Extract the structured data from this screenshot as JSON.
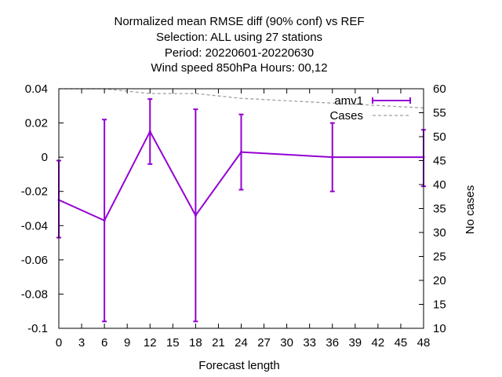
{
  "chart_data": {
    "type": "line",
    "title_lines": [
      "Normalized mean RMSE diff (90% conf) vs REF",
      "Selection: ALL using    27 stations",
      "Period: 20220601-20220630",
      "Wind speed 850hPa   Hours:  00,12"
    ],
    "xlabel": "Forecast length",
    "ylabel": "",
    "y2label": "No cases",
    "xlim": [
      0,
      48
    ],
    "ylim": [
      -0.1,
      0.04
    ],
    "y2lim": [
      10,
      60
    ],
    "x_ticks": [
      "0",
      "3",
      "6",
      "9",
      "12",
      "15",
      "18",
      "21",
      "24",
      "27",
      "30",
      "33",
      "36",
      "39",
      "42",
      "45",
      "48"
    ],
    "y_ticks": [
      "0.04",
      "0.02",
      "0",
      "-0.02",
      "-0.04",
      "-0.06",
      "-0.08",
      "-0.1"
    ],
    "y2_ticks": [
      "60",
      "55",
      "50",
      "45",
      "40",
      "35",
      "30",
      "25",
      "20",
      "15",
      "10"
    ],
    "legend_position": "top-right",
    "series": [
      {
        "name": "amv1",
        "axis": "left",
        "color": "#9400d3",
        "x": [
          0,
          6,
          12,
          18,
          24,
          36,
          48
        ],
        "y": [
          -0.025,
          -0.037,
          0.015,
          -0.034,
          0.003,
          0.0,
          0.0
        ],
        "y_low": [
          -0.047,
          -0.096,
          -0.004,
          -0.096,
          -0.019,
          -0.02,
          -0.017
        ],
        "y_high": [
          -0.002,
          0.022,
          0.034,
          0.028,
          0.025,
          0.02,
          0.016
        ]
      },
      {
        "name": "Cases",
        "axis": "right",
        "color": "#a0a0a0",
        "dashed": true,
        "x": [
          0,
          6,
          12,
          18,
          24,
          36,
          48
        ],
        "y": [
          60,
          60,
          59,
          59,
          58,
          57,
          56
        ]
      }
    ]
  }
}
